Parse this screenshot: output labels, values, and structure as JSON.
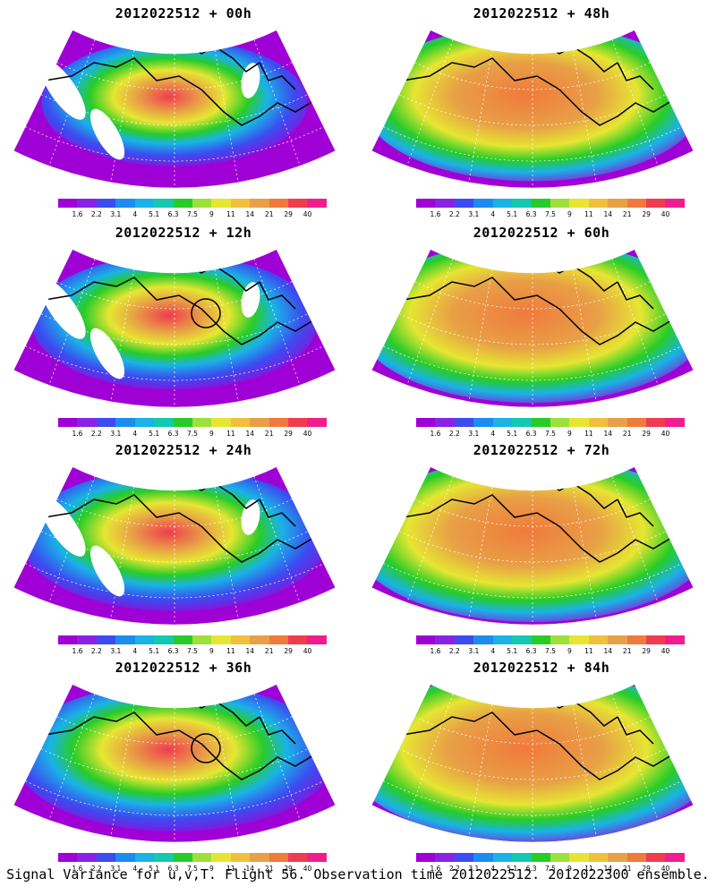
{
  "panels": [
    {
      "title": "2012022512 + 00h",
      "intensity": 0.35,
      "circle": false
    },
    {
      "title": "2012022512 + 48h",
      "intensity": 0.72,
      "circle": false
    },
    {
      "title": "2012022512 + 12h",
      "intensity": 0.45,
      "circle": true
    },
    {
      "title": "2012022512 + 60h",
      "intensity": 0.78,
      "circle": false
    },
    {
      "title": "2012022512 + 24h",
      "intensity": 0.55,
      "circle": false
    },
    {
      "title": "2012022512 + 72h",
      "intensity": 0.82,
      "circle": false
    },
    {
      "title": "2012022512 + 36h",
      "intensity": 0.62,
      "circle": true
    },
    {
      "title": "2012022512 + 84h",
      "intensity": 0.88,
      "circle": false
    }
  ],
  "colorbar": {
    "labels": [
      "1.6",
      "2.2",
      "3.1",
      "4",
      "5.1",
      "6.3",
      "7.5",
      "9",
      "11",
      "14",
      "21",
      "29",
      "40"
    ],
    "colors": [
      "#9f00d6",
      "#8a22e6",
      "#3c4cf0",
      "#1c8cf0",
      "#19b3e6",
      "#13c9b0",
      "#28cc28",
      "#9ee03a",
      "#e6e632",
      "#f0c03c",
      "#e8a046",
      "#f07a3c",
      "#f03c50",
      "#f01e8c"
    ]
  },
  "caption": "Signal Variance for u,v,T. Flight 56. Observation time 2012022512. 2012022300 ensemble."
}
